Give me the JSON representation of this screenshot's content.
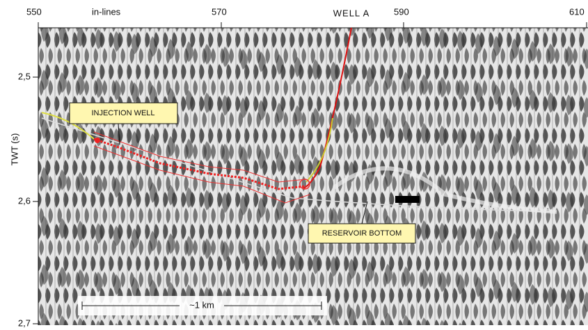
{
  "top_axis": {
    "label": "in-lines",
    "ticks": [
      "550",
      "570",
      "590",
      "610"
    ]
  },
  "left_axis": {
    "label": "TWT (s)",
    "ticks": [
      "2,5",
      "2,6",
      "2,7"
    ]
  },
  "well_label": "WELL A",
  "annotations": {
    "injection_well": "INJECTION WELL",
    "reservoir_bottom": "RESERVOIR BOTTOM"
  },
  "scale_bar": "~1 km"
}
